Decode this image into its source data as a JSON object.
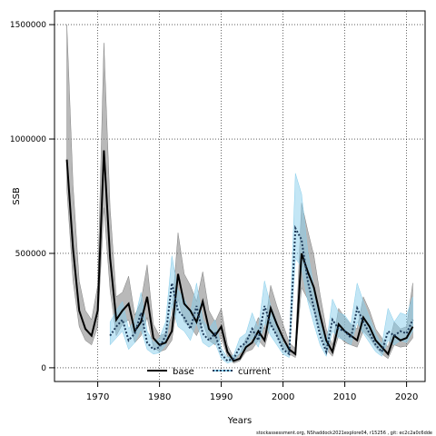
{
  "chart_data": {
    "type": "line",
    "title": "",
    "xlabel": "Years",
    "ylabel": "SSB",
    "xlim": [
      1963,
      2023
    ],
    "ylim": [
      -60000,
      1560000
    ],
    "x_ticks": [
      1970,
      1980,
      1990,
      2000,
      2010,
      2020
    ],
    "y_ticks": [
      0,
      500000,
      1000000,
      1500000
    ],
    "grid": true,
    "legend_position": "bottom-center",
    "footer": "stockassessment.org,  NShaddock2021explore04,  r15256 ,  git:  ec2c2a0c6dde",
    "series": [
      {
        "name": "base",
        "color": "#000000",
        "band_color": "#808080",
        "x": [
          1965,
          1966,
          1967,
          1968,
          1969,
          1970,
          1971,
          1972,
          1973,
          1974,
          1975,
          1976,
          1977,
          1978,
          1979,
          1980,
          1981,
          1982,
          1983,
          1984,
          1985,
          1986,
          1987,
          1988,
          1989,
          1990,
          1991,
          1992,
          1993,
          1994,
          1995,
          1996,
          1997,
          1998,
          1999,
          2000,
          2001,
          2002,
          2003,
          2004,
          2005,
          2006,
          2007,
          2008,
          2009,
          2010,
          2011,
          2012,
          2013,
          2014,
          2015,
          2016,
          2017,
          2018,
          2019,
          2020,
          2021
        ],
        "y": [
          910000,
          520000,
          250000,
          170000,
          140000,
          250000,
          950000,
          480000,
          210000,
          250000,
          280000,
          160000,
          200000,
          310000,
          130000,
          100000,
          110000,
          160000,
          410000,
          280000,
          250000,
          200000,
          290000,
          170000,
          140000,
          180000,
          70000,
          30000,
          40000,
          90000,
          110000,
          160000,
          120000,
          260000,
          190000,
          130000,
          80000,
          60000,
          500000,
          420000,
          350000,
          230000,
          120000,
          70000,
          190000,
          160000,
          140000,
          120000,
          220000,
          180000,
          120000,
          90000,
          60000,
          140000,
          120000,
          130000,
          180000
        ],
        "lower": [
          780000,
          380000,
          180000,
          120000,
          100000,
          180000,
          700000,
          340000,
          140000,
          190000,
          210000,
          110000,
          140000,
          220000,
          90000,
          70000,
          80000,
          120000,
          300000,
          200000,
          180000,
          140000,
          200000,
          120000,
          100000,
          130000,
          50000,
          20000,
          30000,
          70000,
          80000,
          120000,
          90000,
          190000,
          140000,
          90000,
          60000,
          45000,
          350000,
          300000,
          250000,
          160000,
          80000,
          50000,
          140000,
          110000,
          100000,
          90000,
          160000,
          130000,
          90000,
          60000,
          40000,
          100000,
          90000,
          95000,
          130000
        ],
        "upper": [
          1500000,
          800000,
          380000,
          250000,
          210000,
          360000,
          1420000,
          700000,
          310000,
          330000,
          400000,
          230000,
          290000,
          450000,
          190000,
          140000,
          150000,
          230000,
          590000,
          410000,
          360000,
          290000,
          420000,
          250000,
          200000,
          260000,
          100000,
          45000,
          60000,
          130000,
          150000,
          220000,
          170000,
          360000,
          270000,
          190000,
          110000,
          85000,
          720000,
          600000,
          490000,
          320000,
          170000,
          100000,
          260000,
          220000,
          190000,
          170000,
          310000,
          250000,
          170000,
          130000,
          90000,
          200000,
          170000,
          180000,
          370000
        ]
      },
      {
        "name": "current",
        "color": "#1f3b5a",
        "band_color": "#87ceeb",
        "x": [
          1972,
          1973,
          1974,
          1975,
          1976,
          1977,
          1978,
          1979,
          1980,
          1981,
          1982,
          1983,
          1984,
          1985,
          1986,
          1987,
          1988,
          1989,
          1990,
          1991,
          1992,
          1993,
          1994,
          1995,
          1996,
          1997,
          1998,
          1999,
          2000,
          2001,
          2002,
          2003,
          2004,
          2005,
          2006,
          2007,
          2008,
          2009,
          2010,
          2011,
          2012,
          2013,
          2014,
          2015,
          2016,
          2017,
          2018,
          2019,
          2020,
          2021
        ],
        "y": [
          140000,
          180000,
          210000,
          120000,
          150000,
          240000,
          110000,
          80000,
          90000,
          140000,
          370000,
          250000,
          220000,
          170000,
          270000,
          150000,
          120000,
          150000,
          60000,
          30000,
          40000,
          90000,
          110000,
          170000,
          120000,
          270000,
          190000,
          140000,
          80000,
          60000,
          610000,
          560000,
          380000,
          260000,
          140000,
          70000,
          210000,
          170000,
          160000,
          130000,
          260000,
          200000,
          150000,
          100000,
          70000,
          160000,
          140000,
          160000,
          150000,
          210000
        ],
        "lower": [
          100000,
          130000,
          160000,
          80000,
          110000,
          170000,
          80000,
          60000,
          65000,
          100000,
          280000,
          180000,
          160000,
          120000,
          200000,
          110000,
          90000,
          110000,
          40000,
          20000,
          30000,
          65000,
          80000,
          130000,
          90000,
          200000,
          140000,
          100000,
          60000,
          45000,
          480000,
          440000,
          290000,
          190000,
          100000,
          50000,
          160000,
          130000,
          120000,
          100000,
          200000,
          150000,
          110000,
          70000,
          50000,
          120000,
          100000,
          120000,
          110000,
          160000
        ],
        "upper": [
          200000,
          250000,
          290000,
          170000,
          210000,
          330000,
          160000,
          110000,
          130000,
          200000,
          490000,
          340000,
          300000,
          240000,
          370000,
          210000,
          170000,
          210000,
          85000,
          45000,
          55000,
          130000,
          150000,
          240000,
          170000,
          380000,
          270000,
          200000,
          110000,
          85000,
          850000,
          760000,
          510000,
          350000,
          200000,
          100000,
          300000,
          240000,
          230000,
          190000,
          370000,
          290000,
          220000,
          150000,
          100000,
          260000,
          200000,
          240000,
          230000,
          310000
        ]
      }
    ]
  }
}
